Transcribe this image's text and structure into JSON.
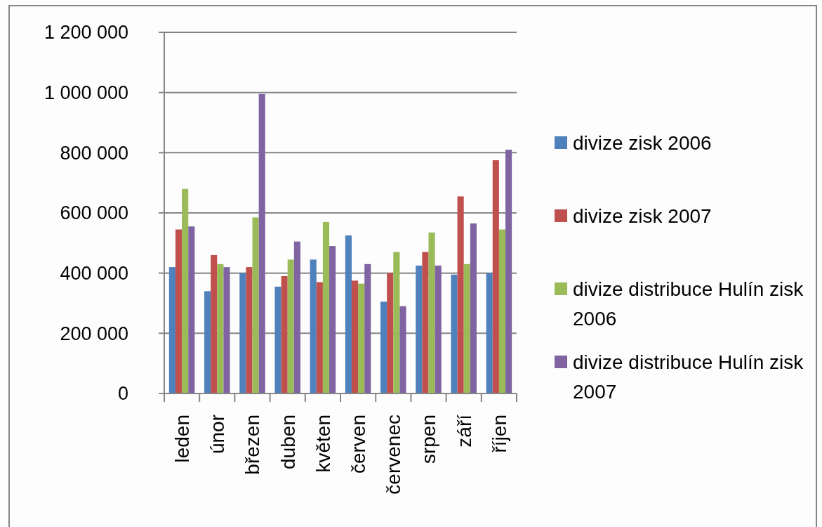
{
  "chart_data": {
    "type": "bar",
    "categories": [
      "leden",
      "únor",
      "březen",
      "duben",
      "květen",
      "červen",
      "červenec",
      "srpen",
      "září",
      "říjen"
    ],
    "series": [
      {
        "name": "divize zisk 2006",
        "color": "#4f81bd",
        "values": [
          420000,
          340000,
          400000,
          355000,
          445000,
          525000,
          305000,
          425000,
          395000,
          400000
        ]
      },
      {
        "name": "divize zisk 2007",
        "color": "#c0504d",
        "values": [
          545000,
          460000,
          420000,
          390000,
          370000,
          375000,
          400000,
          470000,
          655000,
          775000
        ]
      },
      {
        "name": "divize distribuce Hulín zisk 2006",
        "color": "#9bbb59",
        "values": [
          680000,
          430000,
          585000,
          445000,
          570000,
          365000,
          470000,
          535000,
          430000,
          545000
        ]
      },
      {
        "name": "divize distribuce Hulín zisk 2007",
        "color": "#8064a2",
        "values": [
          555000,
          420000,
          995000,
          505000,
          490000,
          430000,
          290000,
          425000,
          565000,
          810000
        ]
      }
    ],
    "ylim": [
      0,
      1200000
    ],
    "yticks": [
      {
        "value": 0,
        "label": "0"
      },
      {
        "value": 200000,
        "label": "200 000"
      },
      {
        "value": 400000,
        "label": "400 000"
      },
      {
        "value": 600000,
        "label": "600 000"
      },
      {
        "value": 800000,
        "label": "800 000"
      },
      {
        "value": 1000000,
        "label": "1 000 000"
      },
      {
        "value": 1200000,
        "label": "1 200 000"
      }
    ],
    "grid": "y",
    "legend": "right"
  }
}
